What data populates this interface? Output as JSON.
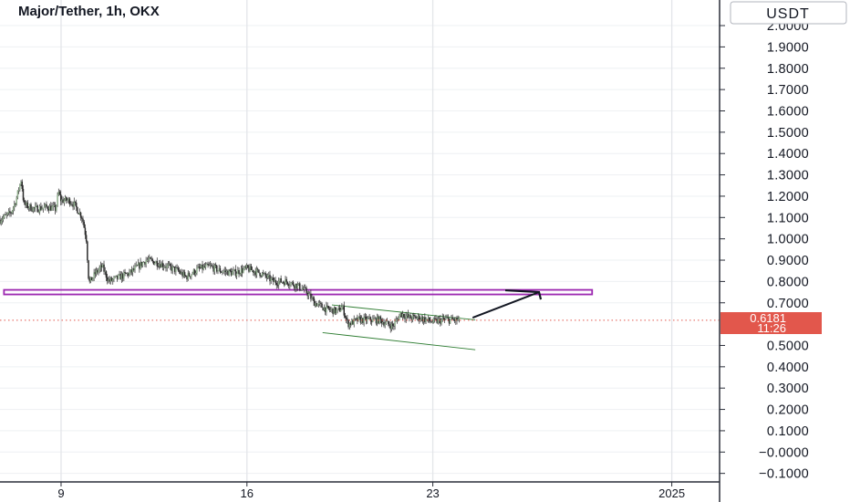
{
  "chart_data": {
    "type": "candlestick",
    "title": "Major/Tether, 1h, OKX",
    "currency": "USDT",
    "y_ticks": [
      "2.0000",
      "1.9000",
      "1.8000",
      "1.7000",
      "1.6000",
      "1.5000",
      "1.4000",
      "1.3000",
      "1.2000",
      "1.1000",
      "1.0000",
      "0.9000",
      "0.8000",
      "0.7000",
      "0.5000",
      "0.4000",
      "0.3000",
      "0.2000",
      "0.1000",
      "−0.0000",
      "−0.1000"
    ],
    "ylim": [
      -0.14,
      2.12
    ],
    "x_ticks": [
      {
        "label": "9",
        "day": 9
      },
      {
        "label": "16",
        "day": 16
      },
      {
        "label": "23",
        "day": 23
      },
      {
        "label": "2025",
        "day": 32
      }
    ],
    "xlim": [
      6.7,
      33.8
    ],
    "grid": true,
    "last_price": {
      "value": 0.6181,
      "label": "0.6181",
      "countdown": "11:26"
    },
    "series": [
      {
        "values": [
          [
            6.7,
            1.09
          ],
          [
            7.1,
            1.12
          ],
          [
            7.3,
            1.18
          ],
          [
            7.5,
            1.28
          ],
          [
            7.6,
            1.16
          ],
          [
            8.0,
            1.14
          ],
          [
            8.5,
            1.15
          ],
          [
            8.8,
            1.14
          ],
          [
            8.9,
            1.22
          ],
          [
            9.0,
            1.18
          ],
          [
            9.3,
            1.18
          ],
          [
            9.5,
            1.16
          ],
          [
            9.7,
            1.12
          ],
          [
            9.8,
            1.1
          ],
          [
            9.95,
            1.0
          ],
          [
            10.05,
            0.79
          ],
          [
            10.3,
            0.84
          ],
          [
            10.55,
            0.87
          ],
          [
            10.8,
            0.8
          ],
          [
            11.2,
            0.82
          ],
          [
            11.6,
            0.84
          ],
          [
            11.9,
            0.87
          ],
          [
            12.2,
            0.9
          ],
          [
            12.6,
            0.89
          ],
          [
            13.0,
            0.87
          ],
          [
            13.4,
            0.85
          ],
          [
            13.7,
            0.82
          ],
          [
            14.2,
            0.86
          ],
          [
            14.6,
            0.87
          ],
          [
            15.0,
            0.85
          ],
          [
            15.5,
            0.84
          ],
          [
            16.0,
            0.86
          ],
          [
            16.5,
            0.84
          ],
          [
            17.0,
            0.8
          ],
          [
            17.5,
            0.8
          ],
          [
            17.9,
            0.78
          ],
          [
            18.25,
            0.75
          ],
          [
            18.55,
            0.7
          ],
          [
            19.0,
            0.67
          ],
          [
            19.4,
            0.66
          ],
          [
            19.6,
            0.68
          ],
          [
            19.8,
            0.6
          ],
          [
            20.2,
            0.62
          ],
          [
            20.6,
            0.62
          ],
          [
            21.0,
            0.62
          ],
          [
            21.3,
            0.6
          ],
          [
            21.5,
            0.59
          ],
          [
            21.8,
            0.65
          ],
          [
            22.1,
            0.63
          ],
          [
            22.5,
            0.63
          ],
          [
            23.0,
            0.61
          ],
          [
            23.4,
            0.62
          ],
          [
            23.6,
            0.62
          ],
          [
            24.0,
            0.6181
          ]
        ]
      }
    ],
    "annotations": {
      "support_level": 0.75,
      "support_start_day": 6.85,
      "support_end_day": 29.0,
      "channel_upper": [
        [
          19.2,
          0.69
        ],
        [
          24.6,
          0.62
        ]
      ],
      "channel_lower": [
        [
          18.85,
          0.56
        ],
        [
          24.6,
          0.48
        ]
      ],
      "projection_arrow": [
        [
          24.5,
          0.63
        ],
        [
          27.0,
          0.75
        ]
      ]
    },
    "colors": {
      "support": "#9c27b0",
      "channel": "#2e7d32",
      "arrow": "#131722",
      "badge": "#e2574c",
      "candle": "#2b2b2b",
      "grid": "#eef0f3",
      "price_line": "#e2574c"
    }
  }
}
